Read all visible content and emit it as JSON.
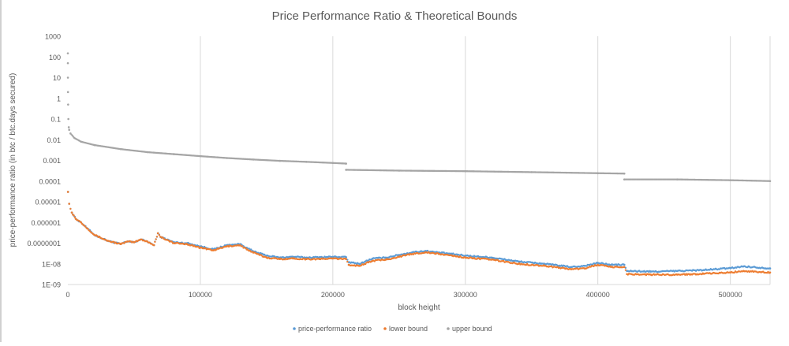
{
  "chart_data": {
    "type": "scatter",
    "title": "Price Performance Ratio & Theoretical Bounds",
    "xlabel": "block height",
    "ylabel": "price-performance ratio (in btc / btc.days secured)",
    "x_scale": "linear",
    "y_scale": "log",
    "xlim": [
      0,
      530000
    ],
    "ylim": [
      1e-09,
      1000
    ],
    "x_ticks": [
      0,
      100000,
      200000,
      300000,
      400000,
      500000
    ],
    "x_tick_labels": [
      "0",
      "100000",
      "200000",
      "300000",
      "400000",
      "500000"
    ],
    "y_ticks": [
      1000,
      100,
      10,
      1,
      0.1,
      0.01,
      0.001,
      0.0001,
      1e-05,
      1e-06,
      1e-07,
      1e-08,
      1e-09
    ],
    "y_tick_labels": [
      "1000",
      "100",
      "10",
      "1",
      "0.1",
      "0.01",
      "0.001",
      "0.0001",
      "0.00001",
      "0.000001",
      "0.0000001",
      "1E-08",
      "1E-09"
    ],
    "grid": "vertical",
    "legend_position": "bottom",
    "series": [
      {
        "name": "price-performance ratio",
        "color": "#5B9BD5",
        "points": [
          [
            100,
            3e-05
          ],
          [
            1000,
            8e-06
          ],
          [
            3000,
            3e-06
          ],
          [
            6000,
            1.5e-06
          ],
          [
            10000,
            1e-06
          ],
          [
            15000,
            5e-07
          ],
          [
            20000,
            2.5e-07
          ],
          [
            30000,
            1.3e-07
          ],
          [
            40000,
            9e-08
          ],
          [
            45000,
            1.2e-07
          ],
          [
            50000,
            1.1e-07
          ],
          [
            55000,
            1.5e-07
          ],
          [
            60000,
            1.2e-07
          ],
          [
            65000,
            8e-08
          ],
          [
            68000,
            3e-07
          ],
          [
            70000,
            2e-07
          ],
          [
            80000,
            1.1e-07
          ],
          [
            90000,
            1e-07
          ],
          [
            100000,
            7e-08
          ],
          [
            110000,
            5e-08
          ],
          [
            120000,
            8e-08
          ],
          [
            130000,
            9e-08
          ],
          [
            135000,
            6e-08
          ],
          [
            140000,
            4e-08
          ],
          [
            150000,
            2.5e-08
          ],
          [
            160000,
            2e-08
          ],
          [
            170000,
            2.2e-08
          ],
          [
            180000,
            2e-08
          ],
          [
            190000,
            2.1e-08
          ],
          [
            200000,
            2.2e-08
          ],
          [
            210000,
            2.1e-08
          ],
          [
            212000,
            1.2e-08
          ],
          [
            220000,
            1e-08
          ],
          [
            230000,
            1.8e-08
          ],
          [
            240000,
            2e-08
          ],
          [
            250000,
            2.7e-08
          ],
          [
            260000,
            3.6e-08
          ],
          [
            270000,
            4.2e-08
          ],
          [
            280000,
            3.5e-08
          ],
          [
            290000,
            3e-08
          ],
          [
            300000,
            2.5e-08
          ],
          [
            320000,
            2e-08
          ],
          [
            340000,
            1.3e-08
          ],
          [
            360000,
            1e-08
          ],
          [
            380000,
            7e-09
          ],
          [
            390000,
            8e-09
          ],
          [
            400000,
            1.1e-08
          ],
          [
            410000,
            9e-09
          ],
          [
            420000,
            9e-09
          ],
          [
            422000,
            4.5e-09
          ],
          [
            440000,
            4.2e-09
          ],
          [
            460000,
            4.5e-09
          ],
          [
            480000,
            5e-09
          ],
          [
            500000,
            6.2e-09
          ],
          [
            510000,
            7.5e-09
          ],
          [
            530000,
            6e-09
          ]
        ]
      },
      {
        "name": "lower bound",
        "color": "#ED7D31",
        "points": [
          [
            100,
            3e-05
          ],
          [
            1000,
            8e-06
          ],
          [
            3000,
            3e-06
          ],
          [
            6000,
            1.5e-06
          ],
          [
            10000,
            1e-06
          ],
          [
            15000,
            5e-07
          ],
          [
            20000,
            2.5e-07
          ],
          [
            30000,
            1.3e-07
          ],
          [
            40000,
            9e-08
          ],
          [
            45000,
            1.2e-07
          ],
          [
            50000,
            1.1e-07
          ],
          [
            55000,
            1.5e-07
          ],
          [
            60000,
            1.2e-07
          ],
          [
            65000,
            8e-08
          ],
          [
            68000,
            3e-07
          ],
          [
            70000,
            2e-07
          ],
          [
            80000,
            1e-07
          ],
          [
            90000,
            9e-08
          ],
          [
            100000,
            6e-08
          ],
          [
            110000,
            4.5e-08
          ],
          [
            120000,
            7e-08
          ],
          [
            130000,
            8e-08
          ],
          [
            135000,
            5e-08
          ],
          [
            140000,
            3.5e-08
          ],
          [
            150000,
            2e-08
          ],
          [
            160000,
            1.7e-08
          ],
          [
            170000,
            1.8e-08
          ],
          [
            180000,
            1.7e-08
          ],
          [
            190000,
            1.7e-08
          ],
          [
            200000,
            1.8e-08
          ],
          [
            210000,
            1.7e-08
          ],
          [
            212000,
            9e-09
          ],
          [
            220000,
            8e-09
          ],
          [
            230000,
            1.4e-08
          ],
          [
            240000,
            1.6e-08
          ],
          [
            250000,
            2.2e-08
          ],
          [
            260000,
            3e-08
          ],
          [
            270000,
            3.6e-08
          ],
          [
            280000,
            3e-08
          ],
          [
            290000,
            2.5e-08
          ],
          [
            300000,
            2e-08
          ],
          [
            320000,
            1.6e-08
          ],
          [
            340000,
            1e-08
          ],
          [
            360000,
            8e-09
          ],
          [
            380000,
            5.5e-09
          ],
          [
            390000,
            6e-09
          ],
          [
            400000,
            9e-09
          ],
          [
            410000,
            7e-09
          ],
          [
            420000,
            7e-09
          ],
          [
            422000,
            3.2e-09
          ],
          [
            440000,
            3e-09
          ],
          [
            460000,
            3e-09
          ],
          [
            480000,
            3.3e-09
          ],
          [
            500000,
            3.8e-09
          ],
          [
            510000,
            4.5e-09
          ],
          [
            530000,
            3.8e-09
          ]
        ]
      },
      {
        "name": "upper bound",
        "color": "#A5A5A5",
        "points": [
          [
            5,
            150
          ],
          [
            20,
            50
          ],
          [
            50,
            10
          ],
          [
            100,
            2
          ],
          [
            200,
            0.5
          ],
          [
            400,
            0.1
          ],
          [
            700,
            0.04
          ],
          [
            1000,
            0.03
          ],
          [
            2000,
            0.02
          ],
          [
            5000,
            0.012
          ],
          [
            10000,
            0.008
          ],
          [
            20000,
            0.0055
          ],
          [
            40000,
            0.0035
          ],
          [
            60000,
            0.0025
          ],
          [
            80000,
            0.002
          ],
          [
            100000,
            0.0016
          ],
          [
            120000,
            0.0013
          ],
          [
            140000,
            0.0011
          ],
          [
            160000,
            0.00095
          ],
          [
            180000,
            0.00085
          ],
          [
            200000,
            0.00075
          ],
          [
            210000,
            0.0007
          ],
          [
            210001,
            0.00035
          ],
          [
            250000,
            0.00032
          ],
          [
            300000,
            0.0003
          ],
          [
            350000,
            0.00027
          ],
          [
            400000,
            0.00024
          ],
          [
            420000,
            0.00023
          ],
          [
            420001,
            0.00012
          ],
          [
            460000,
            0.00012
          ],
          [
            500000,
            0.00011
          ],
          [
            530000,
            0.0001
          ]
        ]
      }
    ]
  }
}
